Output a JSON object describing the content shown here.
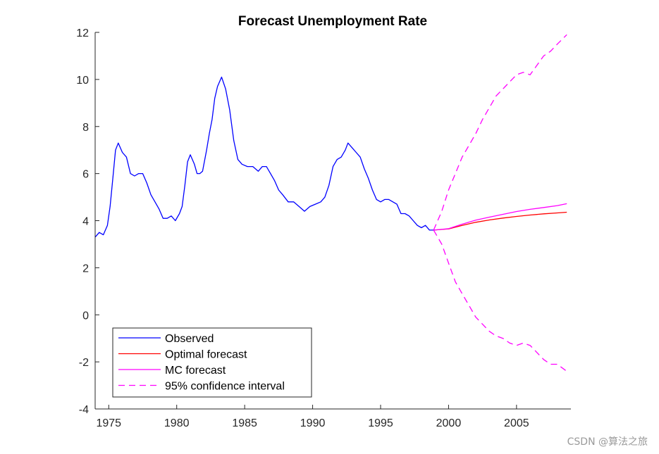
{
  "chart_data": {
    "type": "line",
    "title": "Forecast Unemployment Rate",
    "xlabel": "",
    "ylabel": "",
    "xlim": [
      1974,
      2009
    ],
    "ylim": [
      -4,
      12
    ],
    "x_ticks": [
      1975,
      1980,
      1985,
      1990,
      1995,
      2000,
      2005
    ],
    "y_ticks": [
      -4,
      -2,
      0,
      2,
      4,
      6,
      8,
      10,
      12
    ],
    "x_tick_labels": [
      "1975",
      "1980",
      "1985",
      "1990",
      "1995",
      "2000",
      "2005"
    ],
    "y_tick_labels": [
      "-4",
      "-2",
      "0",
      "2",
      "4",
      "6",
      "8",
      "10",
      "12"
    ],
    "grid": false,
    "legend_position": "bottom-left",
    "series": [
      {
        "name": "Observed",
        "color": "#0000ff",
        "style": "solid",
        "x": [
          1974.0,
          1974.3,
          1974.6,
          1974.9,
          1975.1,
          1975.3,
          1975.5,
          1975.7,
          1976.0,
          1976.3,
          1976.6,
          1976.9,
          1977.2,
          1977.5,
          1977.8,
          1978.1,
          1978.4,
          1978.7,
          1979.0,
          1979.3,
          1979.6,
          1979.9,
          1980.2,
          1980.4,
          1980.6,
          1980.8,
          1981.0,
          1981.3,
          1981.5,
          1981.7,
          1981.9,
          1982.2,
          1982.4,
          1982.6,
          1982.8,
          1983.0,
          1983.3,
          1983.6,
          1983.9,
          1984.2,
          1984.5,
          1984.8,
          1985.2,
          1985.6,
          1986.0,
          1986.3,
          1986.6,
          1986.9,
          1987.2,
          1987.5,
          1987.8,
          1988.2,
          1988.6,
          1989.0,
          1989.4,
          1989.8,
          1990.2,
          1990.6,
          1990.9,
          1991.2,
          1991.5,
          1991.8,
          1992.1,
          1992.4,
          1992.6,
          1992.9,
          1993.2,
          1993.5,
          1993.8,
          1994.1,
          1994.4,
          1994.7,
          1995.0,
          1995.3,
          1995.6,
          1995.9,
          1996.2,
          1996.5,
          1996.8,
          1997.1,
          1997.4,
          1997.7,
          1998.0,
          1998.3,
          1998.6,
          1998.9
        ],
        "y": [
          3.3,
          3.5,
          3.4,
          3.8,
          4.6,
          5.8,
          7.0,
          7.3,
          6.9,
          6.7,
          6.0,
          5.9,
          6.0,
          6.0,
          5.6,
          5.1,
          4.8,
          4.5,
          4.1,
          4.1,
          4.2,
          4.0,
          4.3,
          4.6,
          5.5,
          6.5,
          6.8,
          6.4,
          6.0,
          6.0,
          6.1,
          7.0,
          7.7,
          8.3,
          9.2,
          9.7,
          10.1,
          9.6,
          8.7,
          7.4,
          6.6,
          6.4,
          6.3,
          6.3,
          6.1,
          6.3,
          6.3,
          6.0,
          5.7,
          5.3,
          5.1,
          4.8,
          4.8,
          4.6,
          4.4,
          4.6,
          4.7,
          4.8,
          5.0,
          5.5,
          6.3,
          6.6,
          6.7,
          7.0,
          7.3,
          7.1,
          6.9,
          6.7,
          6.2,
          5.8,
          5.3,
          4.9,
          4.8,
          4.9,
          4.9,
          4.8,
          4.7,
          4.3,
          4.3,
          4.2,
          4.0,
          3.8,
          3.7,
          3.8,
          3.6,
          3.6
        ]
      },
      {
        "name": "Optimal forecast",
        "color": "#ff0000",
        "style": "solid",
        "x": [
          1998.9,
          2000.0,
          2001.0,
          2002.0,
          2003.0,
          2004.0,
          2005.0,
          2006.0,
          2007.0,
          2008.0,
          2008.7
        ],
        "y": [
          3.6,
          3.65,
          3.8,
          3.93,
          4.03,
          4.11,
          4.18,
          4.24,
          4.29,
          4.33,
          4.36
        ]
      },
      {
        "name": "MC forecast",
        "color": "#ff00ff",
        "style": "solid",
        "x": [
          1998.9,
          2000.0,
          2001.0,
          2002.0,
          2003.0,
          2004.0,
          2005.0,
          2006.0,
          2007.0,
          2008.0,
          2008.7
        ],
        "y": [
          3.6,
          3.66,
          3.85,
          4.02,
          4.15,
          4.27,
          4.39,
          4.48,
          4.56,
          4.64,
          4.72
        ]
      },
      {
        "name": "95% confidence interval",
        "color": "#ff00ff",
        "style": "dashed",
        "x": [
          1998.9,
          1999.5,
          2000.0,
          2000.5,
          2001.0,
          2001.5,
          2002.0,
          2002.5,
          2003.0,
          2003.5,
          2004.0,
          2004.5,
          2005.0,
          2005.5,
          2006.0,
          2006.5,
          2007.0,
          2007.5,
          2008.0,
          2008.7
        ],
        "y": [
          3.6,
          4.4,
          5.3,
          6.0,
          6.7,
          7.2,
          7.7,
          8.3,
          8.8,
          9.3,
          9.6,
          9.9,
          10.2,
          10.3,
          10.2,
          10.6,
          11.0,
          11.2,
          11.5,
          11.9
        ]
      },
      {
        "name": "",
        "color": "#ff00ff",
        "style": "dashed",
        "x": [
          1998.9,
          1999.5,
          2000.0,
          2000.5,
          2001.0,
          2001.5,
          2002.0,
          2002.5,
          2003.0,
          2003.5,
          2004.0,
          2004.5,
          2005.0,
          2005.5,
          2006.0,
          2006.5,
          2007.0,
          2007.5,
          2008.0,
          2008.7
        ],
        "y": [
          3.6,
          3.0,
          2.2,
          1.4,
          0.9,
          0.4,
          -0.1,
          -0.4,
          -0.7,
          -0.9,
          -1.0,
          -1.2,
          -1.3,
          -1.2,
          -1.3,
          -1.6,
          -1.9,
          -2.1,
          -2.1,
          -2.4
        ]
      }
    ]
  },
  "watermark": "CSDN @算法之旅"
}
